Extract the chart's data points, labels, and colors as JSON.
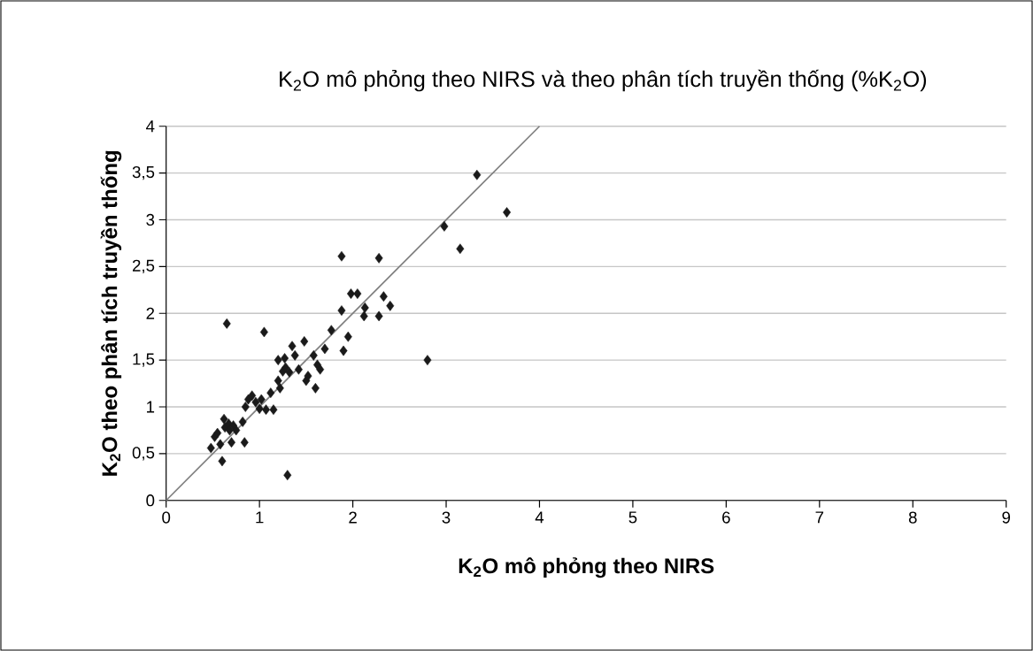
{
  "chart_data": {
    "type": "scatter",
    "title": "K$_{2}$O mô phỏng theo NIRS và theo phân tích truyền thống (%K$_{2}$O)",
    "xlabel": "K$_{2}$O mô phỏng theo NIRS",
    "ylabel": "K$_{2}$O theo phân tích truyền thống",
    "xlim": [
      0,
      9
    ],
    "xticks": [
      0,
      1,
      2,
      3,
      4,
      5,
      6,
      7,
      8,
      9
    ],
    "ylim": [
      0,
      4
    ],
    "yticks": [
      0,
      {
        "value": 0.5,
        "label": "0,5"
      },
      1,
      {
        "value": 1.5,
        "label": "1,5"
      },
      2,
      {
        "value": 2.5,
        "label": "2,5"
      },
      3,
      {
        "value": 3.5,
        "label": "3,5"
      },
      4
    ],
    "grid": "y",
    "series": [
      {
        "type": "line",
        "color": "#808080",
        "marker": "none",
        "line_style": "solid",
        "x": [
          0,
          4
        ],
        "values": [
          0,
          4
        ]
      },
      {
        "color": "#1a1a1a",
        "marker": "diamond",
        "x": [
          0.48,
          0.52,
          0.55,
          0.58,
          0.6,
          0.62,
          0.63,
          0.65,
          0.67,
          0.68,
          0.7,
          0.72,
          0.75,
          0.82,
          0.84,
          0.85,
          0.88,
          0.92,
          0.96,
          1.0,
          1.02,
          1.05,
          1.07,
          1.12,
          1.15,
          1.2,
          1.2,
          1.22,
          1.25,
          1.27,
          1.28,
          1.3,
          1.32,
          1.35,
          1.38,
          1.42,
          1.48,
          1.5,
          1.52,
          1.58,
          1.6,
          1.62,
          1.65,
          1.7,
          1.77,
          1.88,
          1.88,
          1.9,
          1.95,
          1.98,
          2.05,
          2.12,
          2.13,
          2.28,
          2.28,
          2.33,
          2.4,
          2.8,
          2.98,
          3.15,
          3.33,
          3.65
        ],
        "values": [
          0.56,
          0.68,
          0.72,
          0.6,
          0.42,
          0.87,
          0.78,
          1.89,
          0.82,
          0.75,
          0.62,
          0.8,
          0.75,
          0.84,
          0.62,
          1.0,
          1.08,
          1.12,
          1.05,
          0.98,
          1.08,
          1.8,
          0.97,
          1.15,
          0.97,
          1.5,
          1.28,
          1.2,
          1.38,
          1.52,
          1.42,
          0.27,
          1.37,
          1.65,
          1.55,
          1.4,
          1.7,
          1.28,
          1.33,
          1.55,
          1.2,
          1.45,
          1.4,
          1.62,
          1.82,
          2.61,
          2.03,
          1.6,
          1.75,
          2.21,
          2.21,
          1.97,
          2.06,
          2.59,
          1.97,
          2.18,
          2.08,
          1.5,
          2.93,
          2.69,
          3.48,
          3.08
        ]
      }
    ]
  }
}
